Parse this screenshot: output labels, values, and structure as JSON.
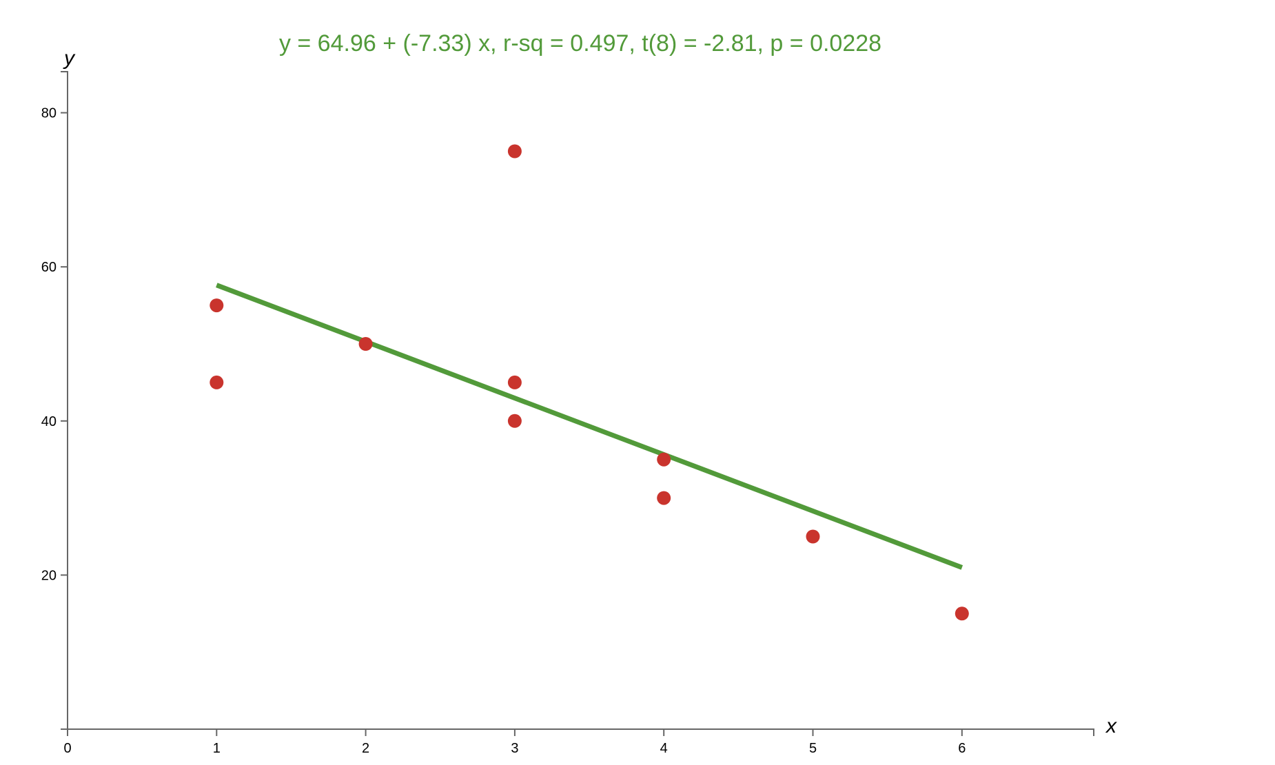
{
  "chart_data": {
    "type": "scatter",
    "title": "y = 64.96 + (-7.33) x, r-sq = 0.497, t(8) = -2.81, p = 0.0228",
    "xlabel": "x",
    "ylabel": "y",
    "xlim": [
      0,
      6.9
    ],
    "ylim": [
      0,
      85
    ],
    "x_ticks": [
      0,
      1,
      2,
      3,
      4,
      5,
      6
    ],
    "y_ticks": [
      20,
      40,
      60,
      80
    ],
    "grid": false,
    "points": [
      {
        "x": 1,
        "y": 55
      },
      {
        "x": 1,
        "y": 45
      },
      {
        "x": 2,
        "y": 50
      },
      {
        "x": 3,
        "y": 75
      },
      {
        "x": 3,
        "y": 45
      },
      {
        "x": 3,
        "y": 40
      },
      {
        "x": 4,
        "y": 35
      },
      {
        "x": 4,
        "y": 30
      },
      {
        "x": 5,
        "y": 25
      },
      {
        "x": 6,
        "y": 15
      }
    ],
    "regression": {
      "intercept": 64.96,
      "slope": -7.33,
      "x_start": 1,
      "x_end": 6
    },
    "colors": {
      "points": "#c9342d",
      "line": "#529a3a",
      "title": "#529a3a",
      "axis": "#666666"
    }
  }
}
